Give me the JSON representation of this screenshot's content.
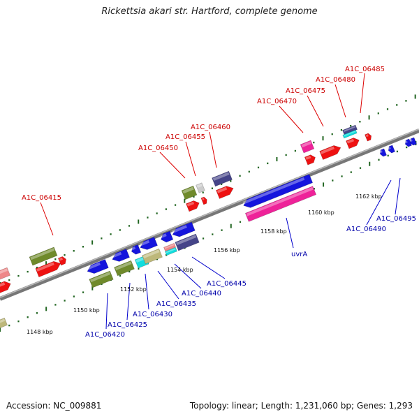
{
  "title": "Rickettsia akari str. Hartford, complete genome",
  "footer": {
    "accession": "Accession: NC_009881",
    "summary": "Topology: linear; Length: 1,231,060 bp; Genes: 1,293"
  },
  "scale_labels": [
    "1148 kbp",
    "1150 kbp",
    "1152 kbp",
    "1154 kbp",
    "1156 kbp",
    "1158 kbp",
    "1160 kbp",
    "1162 kbp"
  ],
  "labels_top": [
    "A1C_06415",
    "A1C_06450",
    "A1C_06455",
    "A1C_06460",
    "A1C_06470",
    "A1C_06475",
    "A1C_06480",
    "A1C_06485"
  ],
  "labels_bottom": [
    "A1C_06420",
    "A1C_06425",
    "A1C_06430",
    "A1C_06435",
    "A1C_06440",
    "A1C_06445",
    "uvrA",
    "A1C_06490",
    "A1C_06495"
  ],
  "colors": {
    "red": "#ee1111",
    "blue": "#1515dd",
    "olive": "#6f8a2b",
    "magenta": "#ee2299",
    "navy": "#454488",
    "khaki": "#bdb87a",
    "cyan": "#11dddd",
    "salmon": "#ee8888",
    "gray": "#cccccc",
    "tick": "#226622",
    "axis": "#888888"
  }
}
